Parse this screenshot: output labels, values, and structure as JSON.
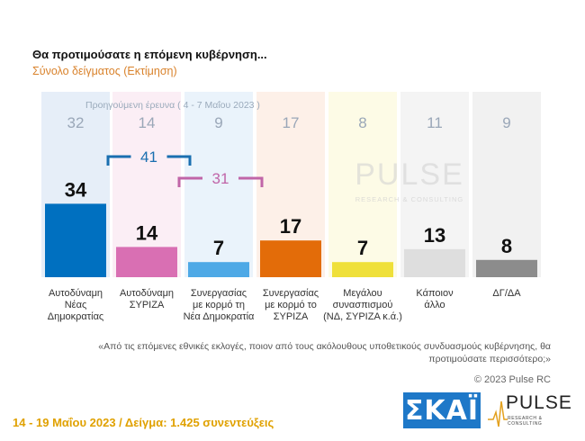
{
  "title": "Θα προτιμούσατε η επόμενη κυβέρνηση...",
  "subtitle": "Σύνολο δείγματος  (Εκτίμηση)",
  "previous_note": "Προηγούμενη έρευνα  ( 4 - 7 Μαΐου  2023 )",
  "question": "«Από τις επόμενες εθνικές εκλογές, ποιον από τους ακόλουθους υποθετικούς συνδυασμούς κυβέρνησης, θα προτιμούσατε περισσότερο;»",
  "copyright": "© 2023 Pulse RC",
  "footer": "14 - 19  Μαΐου  2023  /  Δείγμα:  1.425 συνεντεύξεις",
  "logos": {
    "skai": "ΣΚΑΪ",
    "pulse": "PULSE",
    "pulse_sub": "RESEARCH & CONSULTING"
  },
  "colors": {
    "bars": [
      "#0070c0",
      "#d96fb3",
      "#4ea9e6",
      "#e36c09",
      "#efe03a",
      "#dedede",
      "#8c8c8c"
    ],
    "backgrounds": [
      "#e6eef8",
      "#fbeef5",
      "#eaf3fb",
      "#fdf0e8",
      "#fdfbe6",
      "#f4f4f4",
      "#f1f1f1"
    ],
    "bracket_blue": "#1a6fb0",
    "bracket_pink": "#c065a8"
  },
  "chart_data": {
    "type": "bar",
    "categories": [
      [
        "Αυτοδύναμη",
        "Νέας",
        "Δημοκρατίας"
      ],
      [
        "Αυτοδύναμη",
        "ΣΥΡΙΖΑ"
      ],
      [
        "Συνεργασίας",
        "με κορμό τη",
        "Νέα Δημοκρατία"
      ],
      [
        "Συνεργασίας",
        "με κορμό το",
        "ΣΥΡΙΖΑ"
      ],
      [
        "Μεγάλου",
        "συνασπισμού",
        "(ΝΔ, ΣΥΡΙΖΑ κ.ά.)"
      ],
      [
        "Κάποιον",
        "άλλο"
      ],
      [
        "ΔΓ/ΔΑ"
      ]
    ],
    "series": [
      {
        "name": "Προηγούμενη έρευνα",
        "values": [
          32,
          14,
          9,
          17,
          8,
          11,
          9
        ]
      },
      {
        "values": [
          34,
          14,
          7,
          17,
          7,
          13,
          8
        ]
      }
    ],
    "annotations": [
      {
        "label": "41",
        "from": 0,
        "to": 2
      },
      {
        "label": "31",
        "from": 1,
        "to": 3
      }
    ]
  }
}
